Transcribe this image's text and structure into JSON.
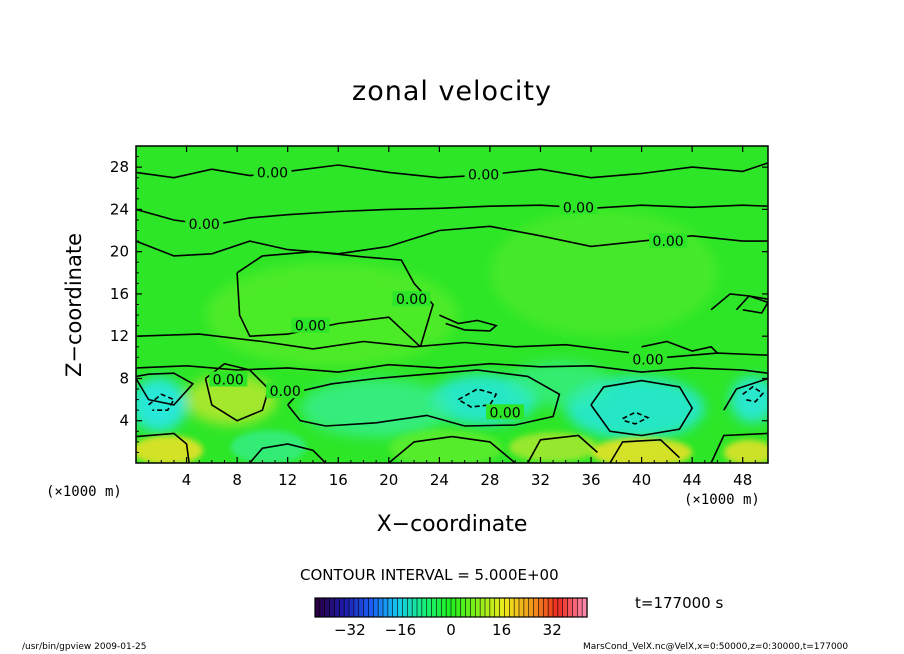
{
  "chart_data": {
    "type": "heatmap",
    "title": "zonal velocity",
    "xlabel": "X−coordinate",
    "ylabel": "Z−coordinate",
    "x_unit": "(×1000 m)",
    "y_unit": "(×1000 m)",
    "xlim": [
      0,
      50
    ],
    "ylim": [
      0,
      30
    ],
    "x_ticks": [
      4,
      8,
      12,
      16,
      20,
      24,
      28,
      32,
      36,
      40,
      44,
      48
    ],
    "y_ticks": [
      4,
      8,
      12,
      16,
      20,
      24,
      28
    ],
    "contour_interval": "CONTOUR INTERVAL = 5.000E+00",
    "contour_labels": [
      {
        "x": 10.8,
        "z": 27.5,
        "text": "0.00"
      },
      {
        "x": 27.5,
        "z": 27.3,
        "text": "0.00"
      },
      {
        "x": 5.4,
        "z": 22.6,
        "text": "0.00"
      },
      {
        "x": 35.0,
        "z": 24.2,
        "text": "0.00"
      },
      {
        "x": 42.1,
        "z": 21.0,
        "text": "0.00"
      },
      {
        "x": 21.8,
        "z": 15.5,
        "text": "0.00"
      },
      {
        "x": 13.8,
        "z": 13.0,
        "text": "0.00"
      },
      {
        "x": 40.5,
        "z": 9.8,
        "text": "0.00"
      },
      {
        "x": 7.3,
        "z": 7.9,
        "text": "0.00"
      },
      {
        "x": 11.8,
        "z": 6.8,
        "text": "0.00"
      },
      {
        "x": 29.2,
        "z": 4.8,
        "text": "0.00"
      }
    ],
    "colorbar": {
      "ticks": [
        -32,
        -16,
        0,
        16,
        32
      ],
      "range": [
        -43,
        43
      ],
      "colors": [
        "#2a0045",
        "#1e1aa8",
        "#1a5ef5",
        "#16c9f0",
        "#19f07a",
        "#20ee1e",
        "#8af01c",
        "#f0ea1c",
        "#f09a1c",
        "#ee2a1e",
        "#ff88aa"
      ]
    },
    "field_colors": {
      "background": "#2ce627",
      "strong_negative": "#27e8e0",
      "weak_negative": "#36f0a0",
      "weak_positive": "#66ee2c",
      "positive": "#b0e82e",
      "strong_positive": "#dde228"
    },
    "time_label": "t=177000 s"
  },
  "footer": {
    "left": "/usr/bin/gpview   2009-01-25",
    "right": "MarsCond_VelX.nc@VelX,x=0:50000,z=0:30000,t=177000"
  }
}
